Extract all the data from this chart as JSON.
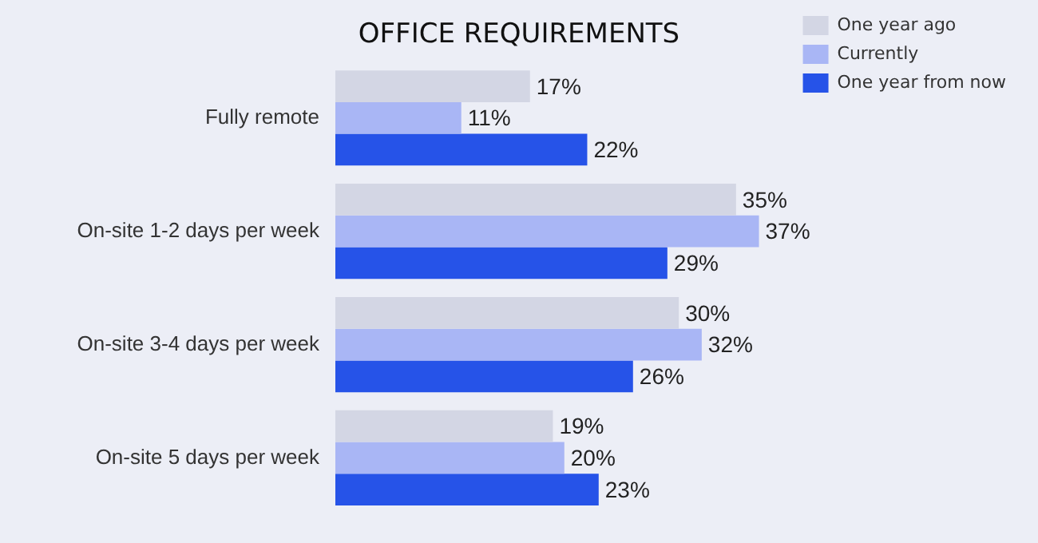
{
  "chart_data": {
    "type": "bar",
    "orientation": "horizontal",
    "title": "OFFICE REQUIREMENTS",
    "categories": [
      "Fully remote",
      "On-site 1-2 days per week",
      "On-site 3-4 days per week",
      "On-site 5 days per week"
    ],
    "series": [
      {
        "name": "One year ago",
        "color": "#d3d6e4",
        "values": [
          17,
          35,
          30,
          19
        ],
        "value_labels": [
          "17%",
          "35%",
          "30%",
          "19%"
        ]
      },
      {
        "name": "Currently",
        "color": "#a9b6f5",
        "values": [
          11,
          37,
          32,
          20
        ],
        "value_labels": [
          "11%",
          "37%",
          "32%",
          "20%"
        ]
      },
      {
        "name": "One year from now",
        "color": "#2653e8",
        "values": [
          22,
          29,
          26,
          23
        ],
        "value_labels": [
          "22%",
          "29%",
          "26%",
          "23%"
        ]
      }
    ],
    "tick_labels": "y",
    "grid": false,
    "legend": "top right"
  }
}
